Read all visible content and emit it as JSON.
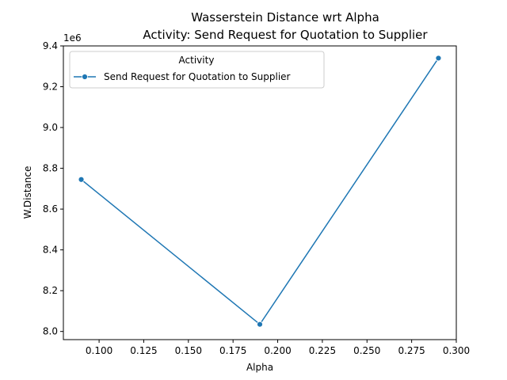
{
  "chart_data": {
    "type": "line",
    "title_line1": "Wasserstein Distance wrt Alpha",
    "title_line2": "Activity: Send Request for Quotation to Supplier",
    "xlabel": "Alpha",
    "ylabel": "W.Distance",
    "y_offset_label": "1e6",
    "xlim": [
      0.08,
      0.3
    ],
    "ylim": [
      7.96,
      9.4
    ],
    "x_ticks": [
      0.1,
      0.125,
      0.15,
      0.175,
      0.2,
      0.225,
      0.25,
      0.275,
      0.3
    ],
    "x_tick_labels": [
      "0.100",
      "0.125",
      "0.150",
      "0.175",
      "0.200",
      "0.225",
      "0.250",
      "0.275",
      "0.300"
    ],
    "y_ticks": [
      8.0,
      8.2,
      8.4,
      8.6,
      8.8,
      9.0,
      9.2,
      9.4
    ],
    "y_tick_labels": [
      "8.0",
      "8.2",
      "8.4",
      "8.6",
      "8.8",
      "9.0",
      "9.2",
      "9.4"
    ],
    "legend": {
      "title": "Activity",
      "placement": "upper-left",
      "entries": [
        "Send Request for Quotation to Supplier"
      ]
    },
    "grid": false,
    "series": [
      {
        "name": "Send Request for Quotation to Supplier",
        "color": "#1f77b4",
        "marker": "circle",
        "x": [
          0.09,
          0.19,
          0.29
        ],
        "y": [
          8.745,
          8.035,
          9.34
        ]
      }
    ]
  }
}
